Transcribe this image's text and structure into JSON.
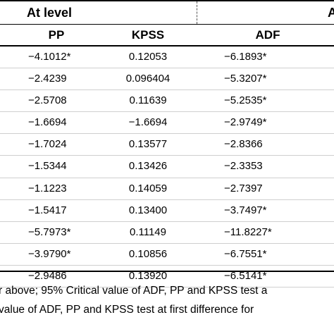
{
  "table": {
    "group_headers": {
      "level": "At level",
      "other": "A"
    },
    "columns": {
      "pp": "PP",
      "kpss": "KPSS",
      "adf": "ADF"
    },
    "rows": [
      {
        "pp": "−4.1012*",
        "kpss": "0.12053",
        "adf": "−6.1893*"
      },
      {
        "pp": "−2.4239",
        "kpss": "0.096404",
        "adf": "−5.3207*"
      },
      {
        "pp": "−2.5708",
        "kpss": "0.11639",
        "adf": "−5.2535*"
      },
      {
        "pp": "−1.6694",
        "kpss": "−1.6694",
        "adf": "−2.9749*"
      },
      {
        "pp": "−1.7024",
        "kpss": "0.13577",
        "adf": "−2.8366"
      },
      {
        "pp": "−1.5344",
        "kpss": "0.13426",
        "adf": "−2.3353"
      },
      {
        "pp": "−1.1223",
        "kpss": "0.14059",
        "adf": "−2.7397"
      },
      {
        "pp": "−1.5417",
        "kpss": "0.13400",
        "adf": "−3.7497*"
      },
      {
        "pp": "−5.7973*",
        "kpss": "0.11149",
        "adf": "−11.8227*"
      },
      {
        "pp": "−3.9790*",
        "kpss": "0.10856",
        "adf": "−6.7551*"
      },
      {
        "pp": "−2.9486",
        "kpss": "0.13920",
        "adf": "−6.5141*"
      }
    ]
  },
  "notes": {
    "line1": "r above; 95% Critical value of ADF, PP and KPSS test a",
    "line2": "value of ADF, PP and KPSS test at first difference for"
  }
}
